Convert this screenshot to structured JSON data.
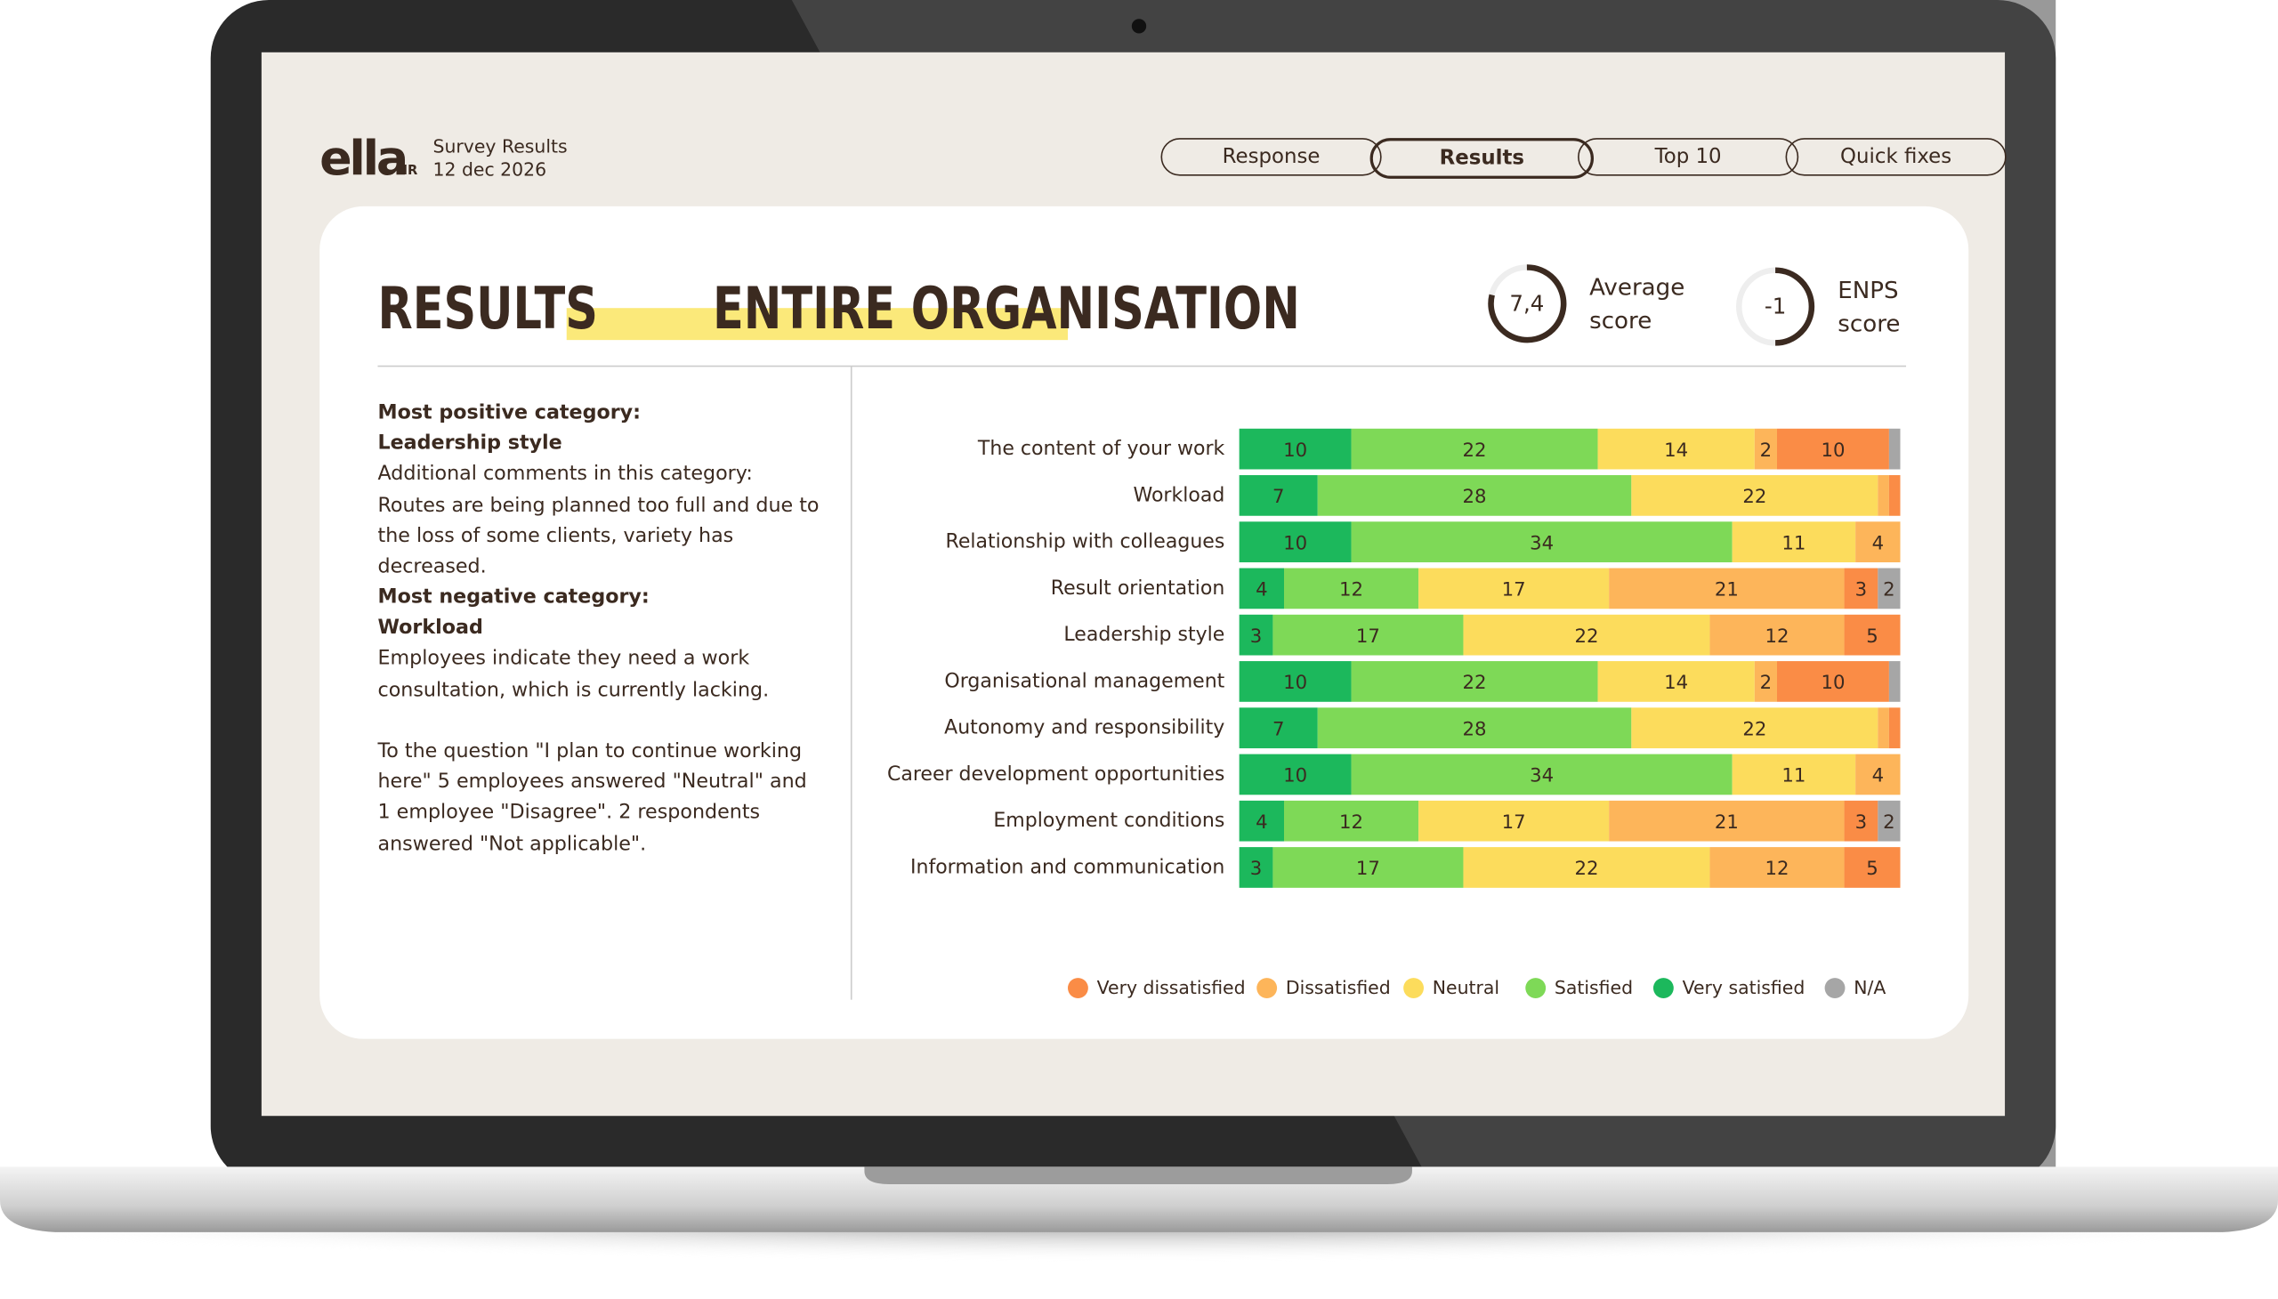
{
  "header": {
    "logo": "ella",
    "logo_sub": "HR",
    "app_title": "Survey Results",
    "date": "12 dec 2026"
  },
  "nav": [
    "Response",
    "Results",
    "Top 10",
    "Quick fixes"
  ],
  "page_title": "RESULTS",
  "page_title_highlight": "ENTIRE ORGANISATION",
  "scores": [
    {
      "value": "7,4",
      "label_lines": [
        "Average",
        "score"
      ]
    },
    {
      "value": "-1",
      "label_lines": [
        "ENPS",
        "score"
      ]
    }
  ],
  "summary": [
    {
      "heading": "Most positive category:",
      "category": "Leadership style",
      "text": "Additional comments in this category: Routes are being planned too full and due to the loss of some clients, variety has decreased."
    },
    {
      "heading": "Most negative category:",
      "category": "Workload",
      "text": "Employees indicate they need a work consultation, which is currently lacking."
    },
    {
      "text": "To the question \"I plan to continue working here\" 5 employees answered \"Neutral\" and 1 employee \"Disagree\". 2 respondents answered \"Not applicable\"."
    }
  ],
  "chart_data": {
    "type": "stacked-bar-horizontal",
    "categories": [
      "The content of your work",
      "Workload",
      "Relationship with colleagues",
      "Result orientation",
      "Leadership style",
      "Organisational management",
      "Autonomy and responsibility",
      "Career development opportunities",
      "Employment conditions",
      "Information and communication"
    ],
    "xlim": [
      0,
      59
    ],
    "series": [
      {
        "name": "Very satisfied",
        "color": "#1cb85c",
        "values": [
          10,
          7,
          10,
          4,
          3,
          10,
          7,
          10,
          4,
          3
        ]
      },
      {
        "name": "Satisfied",
        "color": "#7ed957",
        "values": [
          22,
          28,
          34,
          12,
          17,
          22,
          28,
          34,
          12,
          17
        ]
      },
      {
        "name": "Neutral",
        "color": "#fcdc5c",
        "values": [
          14,
          22,
          11,
          17,
          22,
          14,
          22,
          11,
          17,
          22
        ]
      },
      {
        "name": "Dissatisfied",
        "color": "#fdb55a",
        "values": [
          2,
          1,
          4,
          21,
          12,
          2,
          1,
          4,
          21,
          12
        ]
      },
      {
        "name": "Very dissatisfied",
        "color": "#fa8c46",
        "values": [
          10,
          1,
          null,
          3,
          5,
          10,
          1,
          null,
          3,
          5
        ]
      },
      {
        "name": "N/A",
        "color": "#a6a6a6",
        "values": [
          1,
          null,
          null,
          2,
          null,
          1,
          null,
          null,
          2,
          null
        ]
      }
    ]
  }
}
